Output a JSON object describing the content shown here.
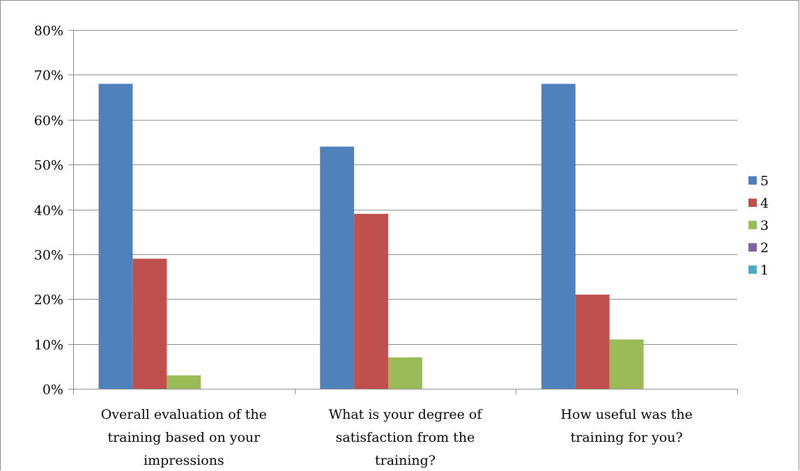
{
  "chart_data": {
    "type": "bar",
    "title": "",
    "xlabel": "",
    "ylabel": "",
    "categories": [
      [
        "Overall evaluation of the",
        "training based on your",
        "impressions"
      ],
      [
        "What is your degree of",
        "satisfaction from the",
        "training?"
      ],
      [
        "How useful was the",
        "training for you?"
      ]
    ],
    "series": [
      {
        "name": "5",
        "color": "#4f81bd",
        "values": [
          0.68,
          0.54,
          0.68
        ]
      },
      {
        "name": "4",
        "color": "#c0504d",
        "values": [
          0.29,
          0.39,
          0.21
        ]
      },
      {
        "name": "3",
        "color": "#9bbb59",
        "values": [
          0.03,
          0.07,
          0.11
        ]
      },
      {
        "name": "2",
        "color": "#8064a2",
        "values": [
          0,
          0,
          0
        ]
      },
      {
        "name": "1",
        "color": "#4bacc6",
        "values": [
          0,
          0,
          0
        ]
      }
    ],
    "ylim": [
      0,
      0.8
    ],
    "yticks": [
      0,
      0.1,
      0.2,
      0.3,
      0.4,
      0.5,
      0.6,
      0.7,
      0.8
    ],
    "ytick_labels": [
      "0%",
      "10%",
      "20%",
      "30%",
      "40%",
      "50%",
      "60%",
      "70%",
      "80%"
    ],
    "grid": true,
    "legend": "right"
  }
}
